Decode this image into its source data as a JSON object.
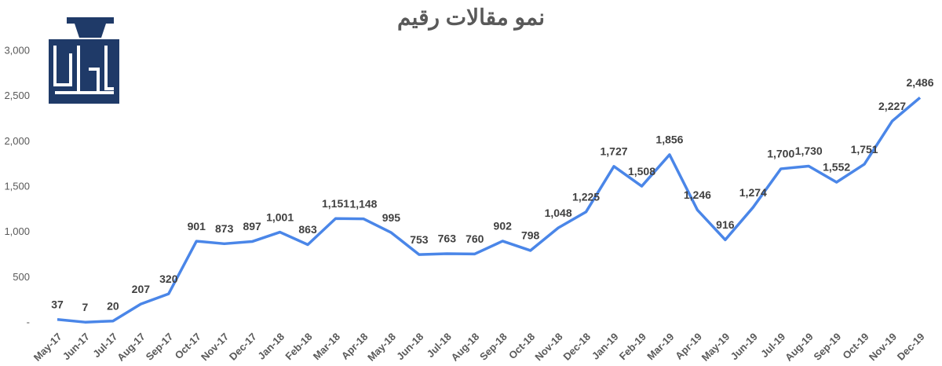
{
  "chart_data": {
    "type": "line",
    "title": "نمو مقالات رقيم",
    "categories": [
      "May-17",
      "Jun-17",
      "Jul-17",
      "Aug-17",
      "Sep-17",
      "Oct-17",
      "Nov-17",
      "Dec-17",
      "Jan-18",
      "Feb-18",
      "Mar-18",
      "Apr-18",
      "May-18",
      "Jun-18",
      "Jul-18",
      "Aug-18",
      "Sep-18",
      "Oct-18",
      "Nov-18",
      "Dec-18",
      "Jan-19",
      "Feb-19",
      "Mar-19",
      "Apr-19",
      "May-19",
      "Jun-19",
      "Jul-19",
      "Aug-19",
      "Sep-19",
      "Oct-19",
      "Nov-19",
      "Dec-19"
    ],
    "values": [
      37,
      7,
      20,
      207,
      320,
      901,
      873,
      897,
      1001,
      863,
      1151,
      1148,
      995,
      753,
      763,
      760,
      902,
      798,
      1048,
      1225,
      1727,
      1508,
      1856,
      1246,
      916,
      1274,
      1700,
      1730,
      1552,
      1751,
      2227,
      2486
    ],
    "value_labels": [
      "37",
      "7",
      "20",
      "207",
      "320",
      "901",
      "873",
      "897",
      "1,001",
      "863",
      "1,151",
      "1,148",
      "995",
      "753",
      "763",
      "760",
      "902",
      "798",
      "1,048",
      "1,225",
      "1,727",
      "1,508",
      "1,856",
      "1,246",
      "916",
      "1,274",
      "1,700",
      "1,730",
      "1,552",
      "1,751",
      "2,227",
      "2,486"
    ],
    "color": "#4a86e8",
    "ylim": [
      0,
      3000
    ],
    "yticks": [
      {
        "value": 0,
        "label": "-"
      },
      500,
      {
        "value": 1000,
        "label": "1,000"
      },
      {
        "value": 1500,
        "label": "1,500"
      },
      {
        "value": 2000,
        "label": "2,000"
      },
      {
        "value": 2500,
        "label": "2,500"
      },
      {
        "value": 3000,
        "label": "3,000"
      }
    ],
    "grid": false
  }
}
